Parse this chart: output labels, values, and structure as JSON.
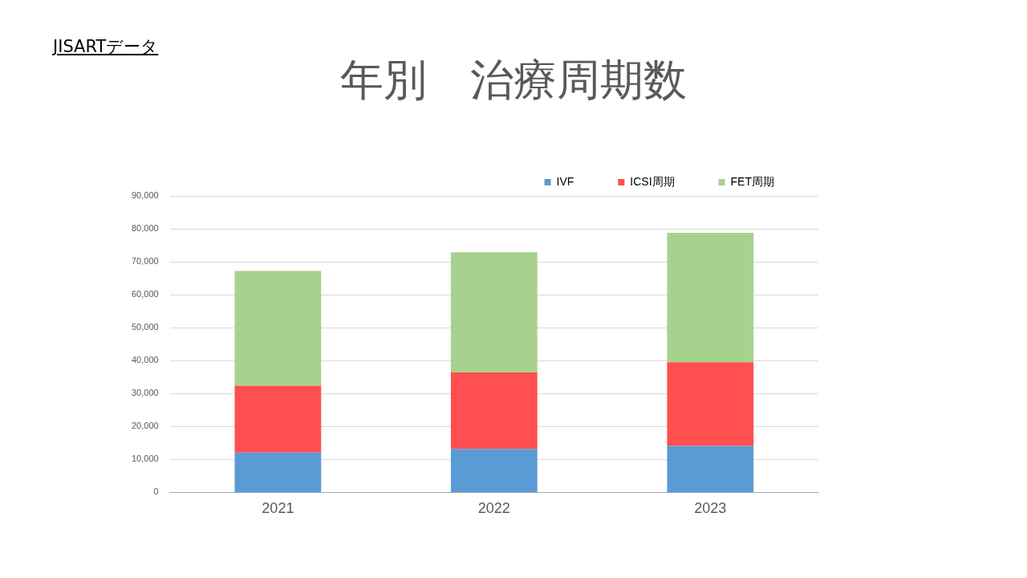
{
  "chart_data": {
    "type": "bar",
    "title": "年別　治療周期数",
    "annotations": [
      "JISARTデータ"
    ],
    "categories": [
      "2021",
      "2022",
      "2023"
    ],
    "stacked": true,
    "series": [
      {
        "name": "IVF",
        "color": "#5b9bd5",
        "values": [
          12100,
          13200,
          14100
        ]
      },
      {
        "name": "ICSI周期",
        "color": "#ff4f4f",
        "values": [
          20300,
          23200,
          25400
        ]
      },
      {
        "name": "FET周期",
        "color": "#a9d18e",
        "values": [
          34800,
          36500,
          39300
        ]
      }
    ],
    "ylim": [
      0,
      90000
    ],
    "yticks": [
      {
        "value": 0,
        "label": "0"
      },
      {
        "value": 10000,
        "label": "10,000"
      },
      {
        "value": 20000,
        "label": "20,000"
      },
      {
        "value": 30000,
        "label": "30,000"
      },
      {
        "value": 40000,
        "label": "40,000"
      },
      {
        "value": 50000,
        "label": "50,000"
      },
      {
        "value": 60000,
        "label": "60,000"
      },
      {
        "value": 70000,
        "label": "70,000"
      },
      {
        "value": 80000,
        "label": "80,000"
      },
      {
        "value": 90000,
        "label": "90,000"
      }
    ],
    "grid": "y",
    "legend": "top"
  }
}
